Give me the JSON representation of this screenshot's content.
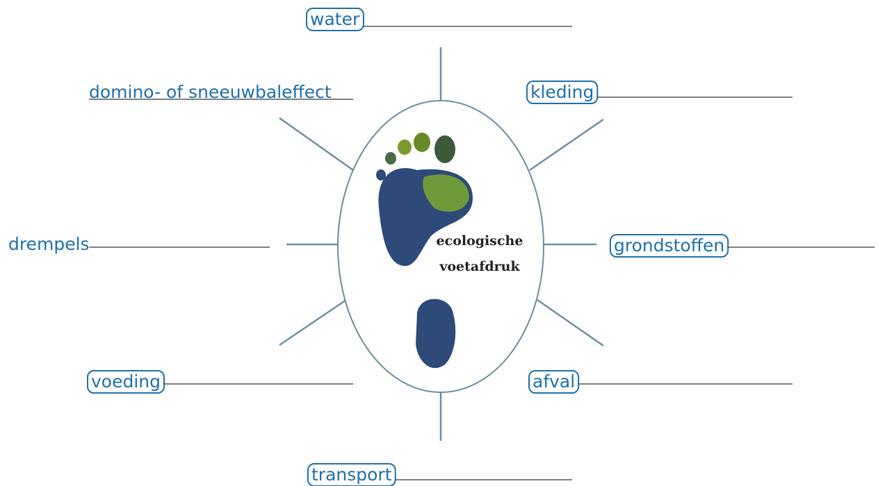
{
  "center": {
    "lines": [
      "ecologische",
      "voetafdruk"
    ]
  },
  "nodes": [
    {
      "label": "water"
    },
    {
      "label": "kleding"
    },
    {
      "label": "grondstoffen"
    },
    {
      "label": "afval"
    },
    {
      "label": "transport"
    },
    {
      "label": "voeding"
    },
    {
      "label": "drempels"
    },
    {
      "label": "domino- of sneeuwbaleffect"
    }
  ]
}
